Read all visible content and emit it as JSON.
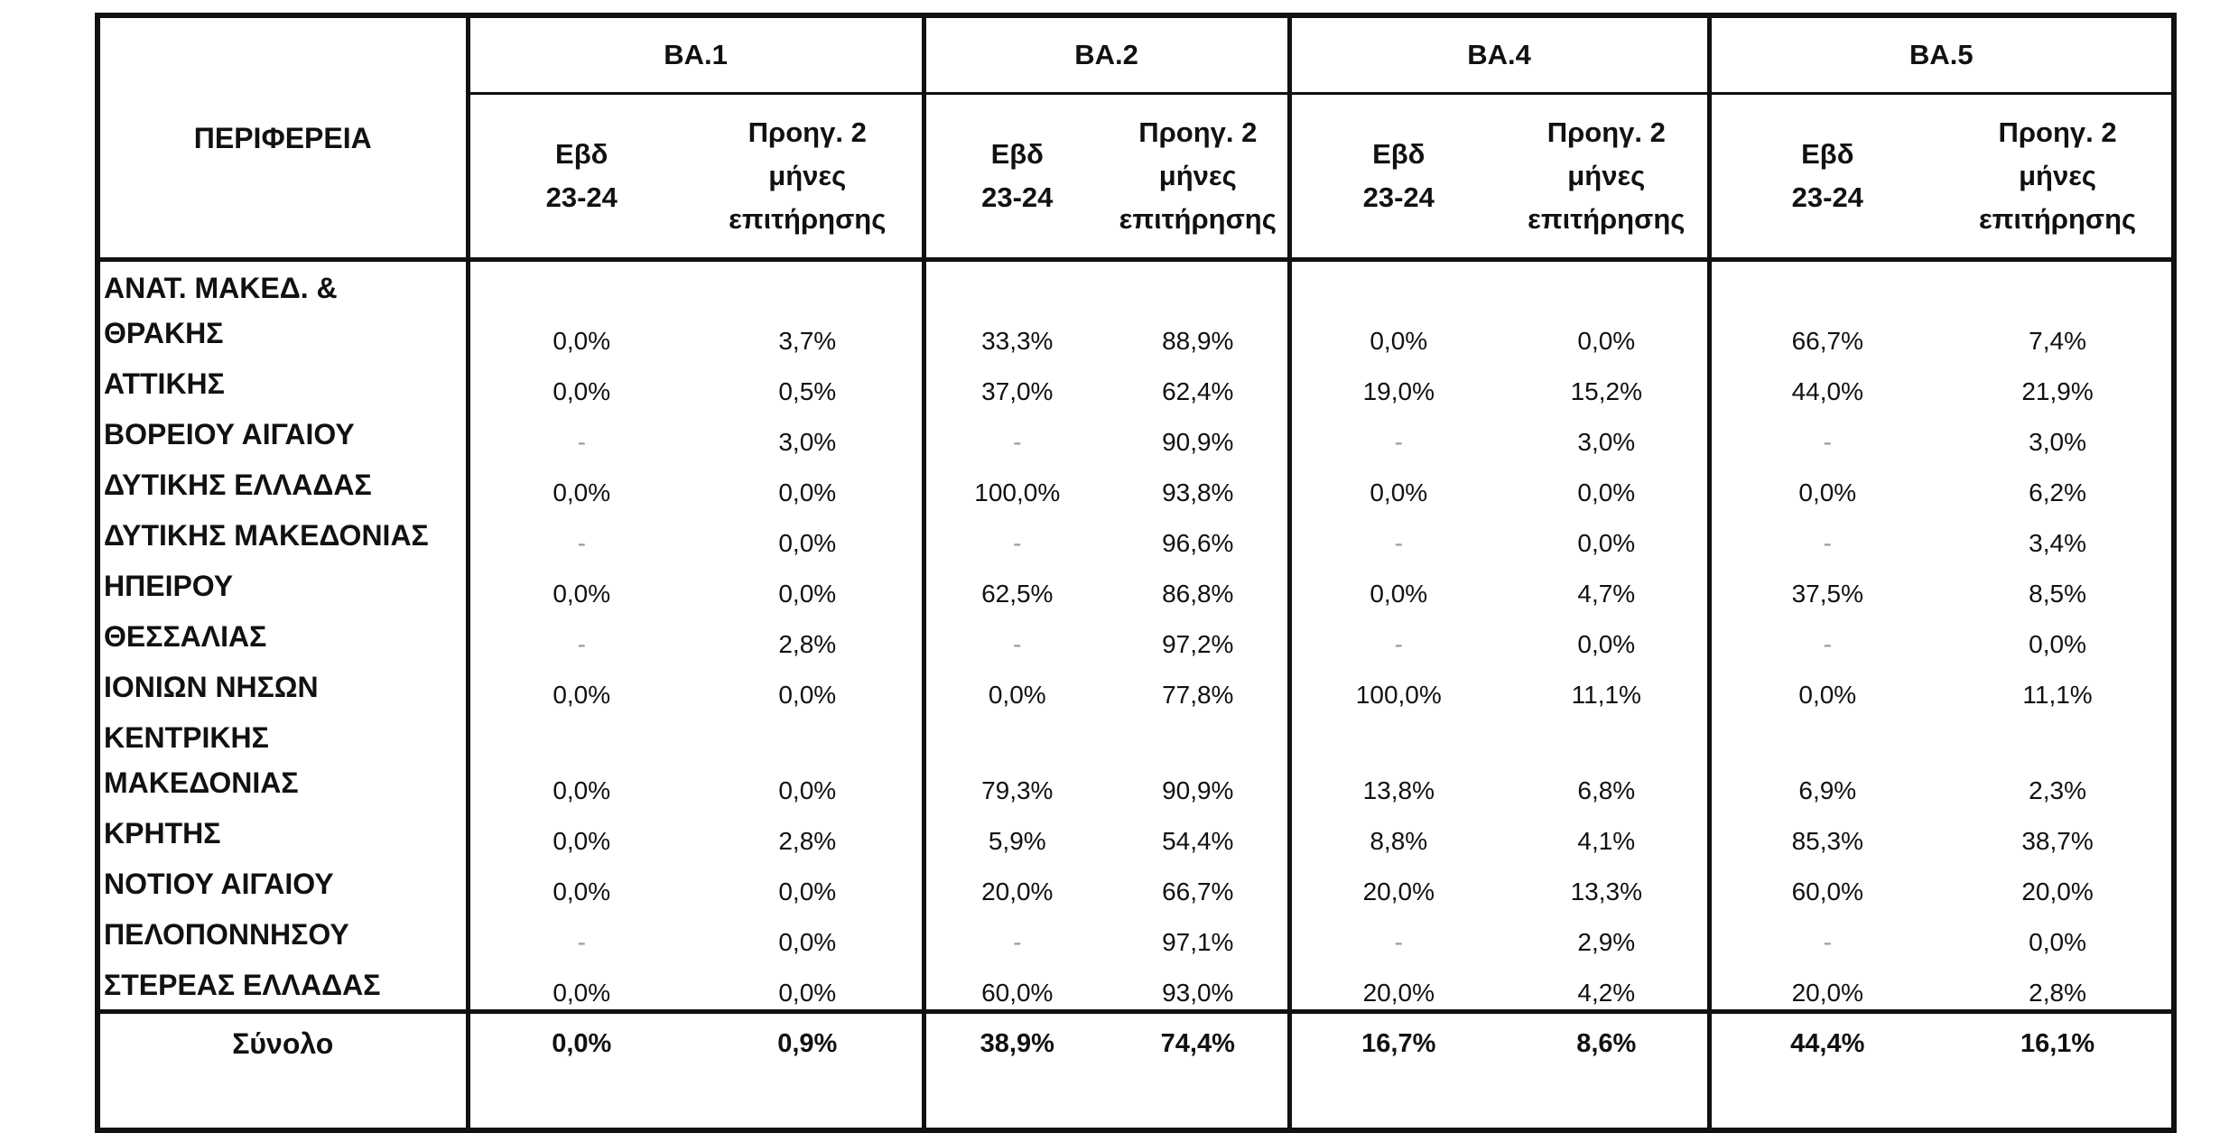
{
  "table": {
    "region_header": "ΠΕΡΙΦΕΡΕΙΑ",
    "groups": [
      {
        "label": "ΒΑ.1"
      },
      {
        "label": "ΒΑ.2"
      },
      {
        "label": "ΒΑ.4"
      },
      {
        "label": "ΒΑ.5"
      }
    ],
    "sub_week_line1": "Εβδ",
    "sub_week_line2": "23-24",
    "sub_prev_line1": "Προηγ. 2",
    "sub_prev_line2": "μήνες",
    "sub_prev_line3": "επιτήρησης",
    "rows": [
      {
        "name_line1": "ΑΝΑΤ. ΜΑΚΕΔ. &",
        "name_line2": "ΘΡΑΚΗΣ",
        "values": [
          "0,0%",
          "3,7%",
          "33,3%",
          "88,9%",
          "0,0%",
          "0,0%",
          "66,7%",
          "7,4%"
        ]
      },
      {
        "name_line1": "ΑΤΤΙΚΗΣ",
        "values": [
          "0,0%",
          "0,5%",
          "37,0%",
          "62,4%",
          "19,0%",
          "15,2%",
          "44,0%",
          "21,9%"
        ]
      },
      {
        "name_line1": "ΒΟΡΕΙΟΥ ΑΙΓΑΙΟΥ",
        "values": [
          "-",
          "3,0%",
          "-",
          "90,9%",
          "-",
          "3,0%",
          "-",
          "3,0%"
        ]
      },
      {
        "name_line1": "ΔΥΤΙΚΗΣ ΕΛΛΑΔΑΣ",
        "values": [
          "0,0%",
          "0,0%",
          "100,0%",
          "93,8%",
          "0,0%",
          "0,0%",
          "0,0%",
          "6,2%"
        ]
      },
      {
        "name_line1": "ΔΥΤΙΚΗΣ ΜΑΚΕΔΟΝΙΑΣ",
        "values": [
          "-",
          "0,0%",
          "-",
          "96,6%",
          "-",
          "0,0%",
          "-",
          "3,4%"
        ]
      },
      {
        "name_line1": "ΗΠΕΙΡΟΥ",
        "values": [
          "0,0%",
          "0,0%",
          "62,5%",
          "86,8%",
          "0,0%",
          "4,7%",
          "37,5%",
          "8,5%"
        ]
      },
      {
        "name_line1": "ΘΕΣΣΑΛΙΑΣ",
        "values": [
          "-",
          "2,8%",
          "-",
          "97,2%",
          "-",
          "0,0%",
          "-",
          "0,0%"
        ]
      },
      {
        "name_line1": "ΙΟΝΙΩΝ ΝΗΣΩΝ",
        "values": [
          "0,0%",
          "0,0%",
          "0,0%",
          "77,8%",
          "100,0%",
          "11,1%",
          "0,0%",
          "11,1%"
        ]
      },
      {
        "name_line1": "ΚΕΝΤΡΙΚΗΣ",
        "name_line2": "ΜΑΚΕΔΟΝΙΑΣ",
        "values": [
          "0,0%",
          "0,0%",
          "79,3%",
          "90,9%",
          "13,8%",
          "6,8%",
          "6,9%",
          "2,3%"
        ]
      },
      {
        "name_line1": "ΚΡΗΤΗΣ",
        "values": [
          "0,0%",
          "2,8%",
          "5,9%",
          "54,4%",
          "8,8%",
          "4,1%",
          "85,3%",
          "38,7%"
        ]
      },
      {
        "name_line1": "ΝΟΤΙΟΥ ΑΙΓΑΙΟΥ",
        "values": [
          "0,0%",
          "0,0%",
          "20,0%",
          "66,7%",
          "20,0%",
          "13,3%",
          "60,0%",
          "20,0%"
        ]
      },
      {
        "name_line1": "ΠΕΛΟΠΟΝΝΗΣΟΥ",
        "values": [
          "-",
          "0,0%",
          "-",
          "97,1%",
          "-",
          "2,9%",
          "-",
          "0,0%"
        ]
      },
      {
        "name_line1": "ΣΤΕΡΕΑΣ ΕΛΛΑΔΑΣ",
        "values": [
          "0,0%",
          "0,0%",
          "60,0%",
          "93,0%",
          "20,0%",
          "4,2%",
          "20,0%",
          "2,8%"
        ]
      }
    ],
    "total": {
      "label": "Σύνολο",
      "values": [
        "0,0%",
        "0,9%",
        "38,9%",
        "74,4%",
        "16,7%",
        "8,6%",
        "44,4%",
        "16,1%"
      ]
    }
  }
}
